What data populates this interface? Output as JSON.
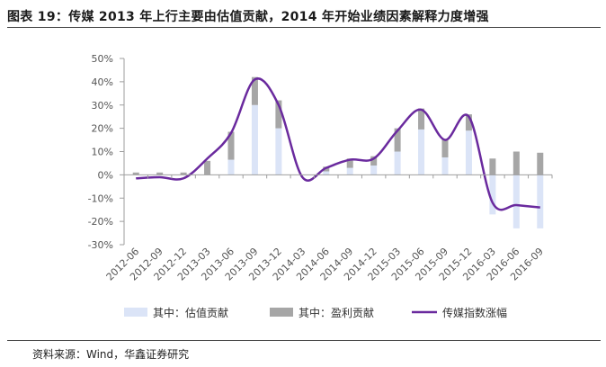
{
  "title": "图表 19：传媒 2013 年上行主要由估值贡献，2014 年开始业绩因素解释力度增强",
  "source": "资料来源：Wind，华鑫证券研究",
  "colors": {
    "valuation": "#dbe4f7",
    "earnings": "#a6a6a6",
    "index": "#6a2a9e",
    "axis": "#9e9e9e"
  },
  "chart_data": {
    "type": "bar",
    "categories": [
      "2012-06",
      "2012-09",
      "2012-12",
      "2013-03",
      "2013-06",
      "2013-09",
      "2013-12",
      "2014-03",
      "2014-06",
      "2014-09",
      "2014-12",
      "2015-03",
      "2015-06",
      "2015-09",
      "2015-12",
      "2016-03",
      "2016-06",
      "2016-09"
    ],
    "series": [
      {
        "name": "其中：估值贡献",
        "kind": "bar",
        "values": [
          0,
          0,
          0,
          0,
          6.5,
          30,
          20,
          0,
          1.5,
          3,
          4,
          10,
          19.5,
          7.5,
          19,
          -17,
          -23,
          -23
        ]
      },
      {
        "name": "其中：盈利贡献",
        "kind": "bar",
        "values": [
          1,
          1,
          1,
          6,
          12,
          12,
          12,
          0,
          2,
          4,
          4,
          10,
          9,
          8,
          7,
          7,
          10,
          9.5
        ]
      },
      {
        "name": "传媒指数涨幅",
        "kind": "line",
        "values": [
          -1.5,
          -1,
          -1.5,
          7,
          18,
          41,
          30,
          -1,
          3,
          6.5,
          7,
          19,
          28,
          15,
          25,
          -12,
          -13,
          -14
        ]
      }
    ],
    "ylim": [
      -30,
      50
    ],
    "yticks": [
      -30,
      -20,
      -10,
      0,
      10,
      20,
      30,
      40,
      50
    ],
    "yticks_labels": [
      "-30%",
      "-20%",
      "-10%",
      "0%",
      "10%",
      "20%",
      "30%",
      "40%",
      "50%"
    ],
    "legend": "bottom",
    "grid": false
  }
}
